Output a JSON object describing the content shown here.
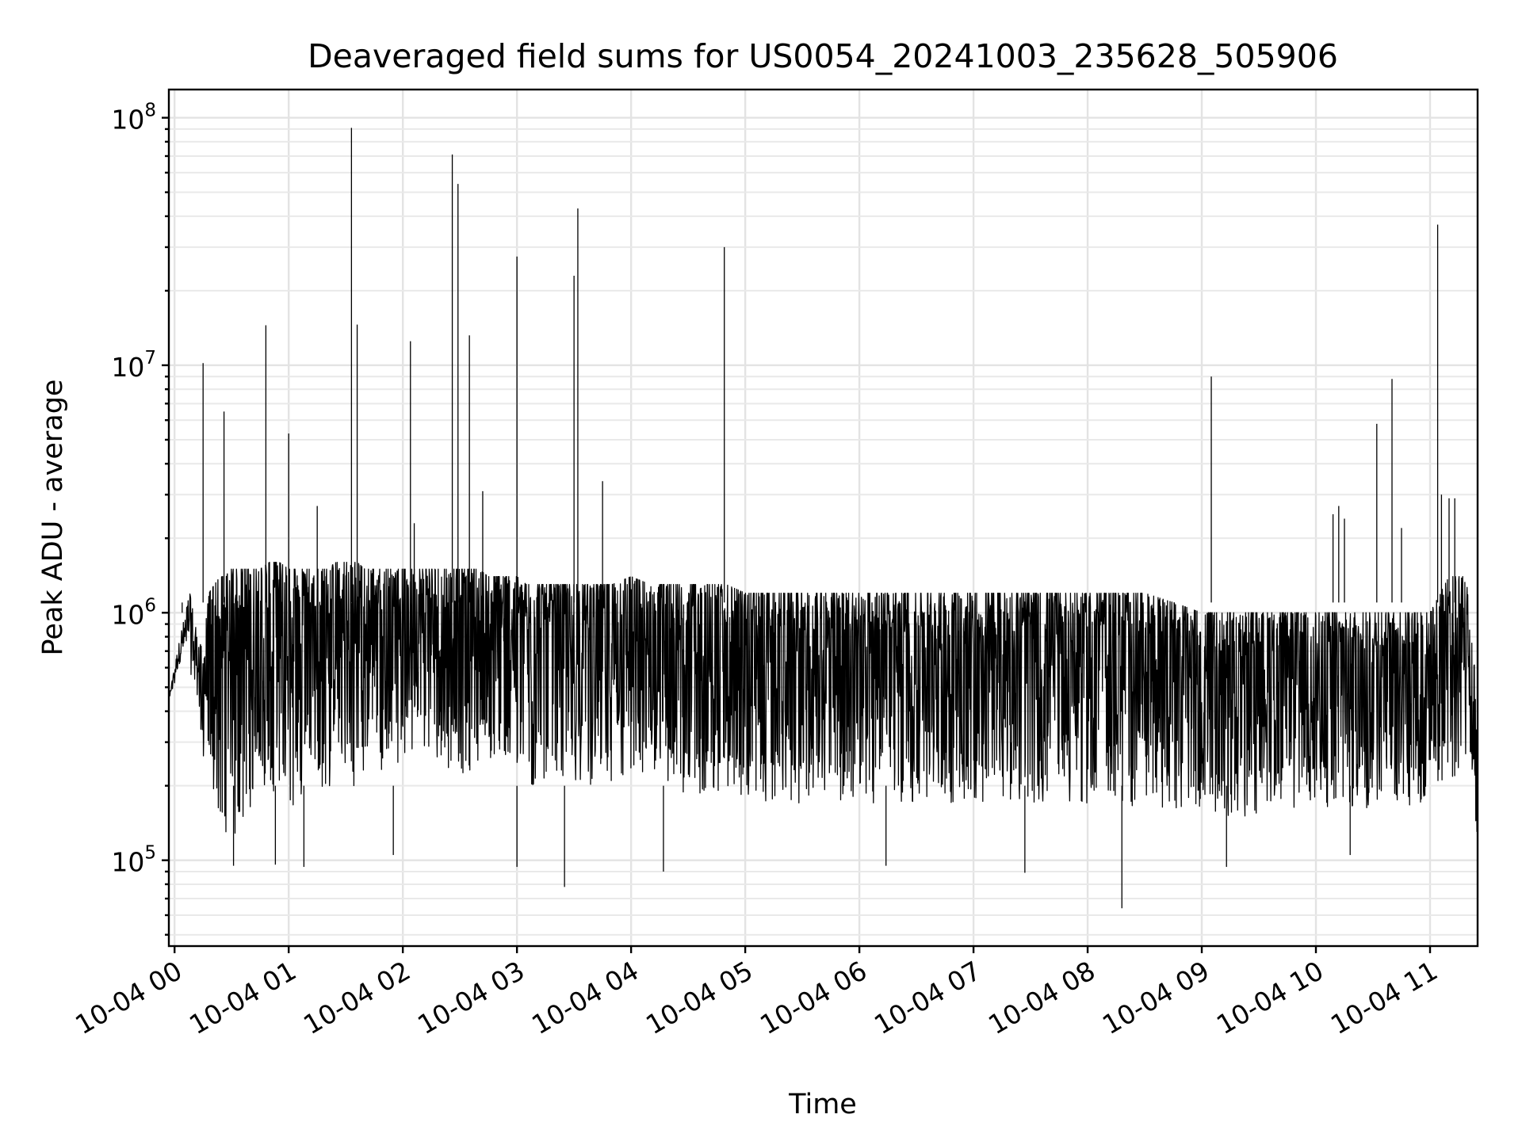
{
  "chart_data": {
    "type": "line",
    "title": "Deaveraged field sums for US0054_20241003_235628_505906",
    "xlabel": "Time",
    "ylabel": "Peak ADU - average",
    "yscale": "log",
    "grid": true,
    "xlim": [
      "2024-10-03 23:57",
      "2024-10-04 11:25"
    ],
    "ylim": [
      45000,
      130000000
    ],
    "x_ticks": [
      "10-04 00",
      "10-04 01",
      "10-04 02",
      "10-04 03",
      "10-04 04",
      "10-04 05",
      "10-04 06",
      "10-04 07",
      "10-04 08",
      "10-04 09",
      "10-04 10",
      "10-04 11"
    ],
    "y_ticks": [
      {
        "base": "10",
        "exp": "5"
      },
      {
        "base": "10",
        "exp": "6"
      },
      {
        "base": "10",
        "exp": "7"
      },
      {
        "base": "10",
        "exp": "8"
      }
    ],
    "series": [
      {
        "color": "#000000",
        "x": [
          "2024-10-03 23:57",
          "2024-10-04 00:03",
          "2024-10-04 00:08",
          "2024-10-04 00:12",
          "2024-10-04 00:15",
          "2024-10-04 00:18",
          "2024-10-04 00:21",
          "2024-10-04 00:24",
          "2024-10-04 00:27",
          "2024-10-04 00:29",
          "2024-10-04 00:31",
          "2024-10-04 00:33",
          "2024-10-04 00:35",
          "2024-10-04 00:40",
          "2024-10-04 00:45",
          "2024-10-04 00:50",
          "2024-10-04 00:55",
          "2024-10-04 01:00",
          "2024-10-04 01:05",
          "2024-10-04 01:10",
          "2024-10-04 01:15",
          "2024-10-04 01:20",
          "2024-10-04 01:25",
          "2024-10-04 01:30",
          "2024-10-04 01:33",
          "2024-10-04 01:36",
          "2024-10-04 01:40",
          "2024-10-04 01:45",
          "2024-10-04 01:50",
          "2024-10-04 01:55",
          "2024-10-04 02:00",
          "2024-10-04 02:04",
          "2024-10-04 02:08",
          "2024-10-04 02:12",
          "2024-10-04 02:16",
          "2024-10-04 02:20",
          "2024-10-04 02:24",
          "2024-10-04 02:27",
          "2024-10-04 02:30",
          "2024-10-04 02:35",
          "2024-10-04 02:40",
          "2024-10-04 02:45",
          "2024-10-04 02:50",
          "2024-10-04 02:55",
          "2024-10-04 03:00",
          "2024-10-04 03:05",
          "2024-10-04 03:10",
          "2024-10-04 03:15",
          "2024-10-04 03:20",
          "2024-10-04 03:25",
          "2024-10-04 03:30",
          "2024-10-04 03:35",
          "2024-10-04 03:40",
          "2024-10-04 03:45",
          "2024-10-04 03:50",
          "2024-10-04 04:00",
          "2024-10-04 04:10",
          "2024-10-04 04:20",
          "2024-10-04 04:30",
          "2024-10-04 04:40",
          "2024-10-04 04:50",
          "2024-10-04 05:00",
          "2024-10-04 05:15",
          "2024-10-04 05:30",
          "2024-10-04 05:45",
          "2024-10-04 06:00",
          "2024-10-04 06:15",
          "2024-10-04 06:30",
          "2024-10-04 06:45",
          "2024-10-04 07:00",
          "2024-10-04 07:15",
          "2024-10-04 07:30",
          "2024-10-04 07:45",
          "2024-10-04 08:00",
          "2024-10-04 08:15",
          "2024-10-04 08:30",
          "2024-10-04 08:45",
          "2024-10-04 09:00",
          "2024-10-04 09:15",
          "2024-10-04 09:30",
          "2024-10-04 09:45",
          "2024-10-04 10:00",
          "2024-10-04 10:15",
          "2024-10-04 10:30",
          "2024-10-04 10:45",
          "2024-10-04 11:00",
          "2024-10-04 11:10",
          "2024-10-04 11:20",
          "2024-10-04 11:25"
        ],
        "upper": [
          450000,
          800000,
          1200000,
          800000,
          700000,
          1200000,
          1300000,
          1400000,
          1400000,
          1500000,
          1500000,
          1500000,
          1500000,
          1500000,
          1500000,
          1600000,
          1600000,
          1500000,
          1500000,
          1500000,
          1500000,
          1500000,
          1600000,
          1600000,
          1600000,
          1600000,
          1500000,
          1500000,
          1500000,
          1500000,
          1500000,
          1500000,
          1500000,
          1500000,
          1500000,
          1500000,
          1500000,
          1500000,
          1500000,
          1500000,
          1500000,
          1400000,
          1400000,
          1400000,
          1400000,
          1300000,
          1300000,
          1300000,
          1300000,
          1300000,
          1300000,
          1300000,
          1300000,
          1300000,
          1300000,
          1400000,
          1300000,
          1300000,
          1300000,
          1300000,
          1300000,
          1200000,
          1200000,
          1200000,
          1200000,
          1200000,
          1200000,
          1200000,
          1200000,
          1200000,
          1200000,
          1200000,
          1200000,
          1200000,
          1200000,
          1200000,
          1100000,
          1000000,
          1000000,
          1000000,
          1000000,
          1000000,
          1000000,
          1000000,
          1000000,
          1000000,
          1400000,
          1400000,
          400000
        ],
        "lower": [
          450000,
          600000,
          600000,
          400000,
          250000,
          200000,
          180000,
          150000,
          130000,
          120000,
          110000,
          120000,
          140000,
          160000,
          170000,
          180000,
          180000,
          170000,
          160000,
          170000,
          180000,
          190000,
          200000,
          210000,
          200000,
          200000,
          210000,
          220000,
          230000,
          240000,
          250000,
          260000,
          270000,
          260000,
          250000,
          240000,
          230000,
          220000,
          220000,
          230000,
          240000,
          240000,
          230000,
          220000,
          220000,
          200000,
          190000,
          190000,
          200000,
          210000,
          210000,
          200000,
          190000,
          180000,
          190000,
          200000,
          200000,
          190000,
          180000,
          180000,
          180000,
          170000,
          170000,
          170000,
          170000,
          170000,
          170000,
          170000,
          170000,
          170000,
          170000,
          170000,
          170000,
          170000,
          170000,
          160000,
          160000,
          150000,
          150000,
          150000,
          160000,
          160000,
          160000,
          160000,
          160000,
          160000,
          200000,
          250000,
          100000
        ]
      }
    ],
    "spikes": [
      {
        "x": "2024-10-04 00:04",
        "y": 1000000
      },
      {
        "x": "2024-10-04 00:15",
        "y": 10200000
      },
      {
        "x": "2024-10-04 00:26",
        "y": 6500000
      },
      {
        "x": "2024-10-04 00:48",
        "y": 14500000
      },
      {
        "x": "2024-10-04 01:00",
        "y": 5300000
      },
      {
        "x": "2024-10-04 01:15",
        "y": 2700000
      },
      {
        "x": "2024-10-04 01:33",
        "y": 91000000
      },
      {
        "x": "2024-10-04 01:36",
        "y": 14600000
      },
      {
        "x": "2024-10-04 02:04",
        "y": 12500000
      },
      {
        "x": "2024-10-04 02:06",
        "y": 2300000
      },
      {
        "x": "2024-10-04 02:26",
        "y": 71000000
      },
      {
        "x": "2024-10-04 02:29",
        "y": 54000000
      },
      {
        "x": "2024-10-04 02:35",
        "y": 13200000
      },
      {
        "x": "2024-10-04 02:42",
        "y": 3100000
      },
      {
        "x": "2024-10-04 03:00",
        "y": 27500000
      },
      {
        "x": "2024-10-04 03:30",
        "y": 23000000
      },
      {
        "x": "2024-10-04 03:32",
        "y": 43000000
      },
      {
        "x": "2024-10-04 03:45",
        "y": 3400000
      },
      {
        "x": "2024-10-04 04:49",
        "y": 30000000
      },
      {
        "x": "2024-10-04 09:05",
        "y": 9000000
      },
      {
        "x": "2024-10-04 10:09",
        "y": 2500000
      },
      {
        "x": "2024-10-04 10:12",
        "y": 2700000
      },
      {
        "x": "2024-10-04 10:15",
        "y": 2400000
      },
      {
        "x": "2024-10-04 10:32",
        "y": 5800000
      },
      {
        "x": "2024-10-04 10:40",
        "y": 8800000
      },
      {
        "x": "2024-10-04 10:45",
        "y": 2200000
      },
      {
        "x": "2024-10-04 11:04",
        "y": 37000000
      },
      {
        "x": "2024-10-04 11:06",
        "y": 3000000
      },
      {
        "x": "2024-10-04 11:10",
        "y": 2900000
      },
      {
        "x": "2024-10-04 11:13",
        "y": 2900000
      }
    ],
    "dips": [
      {
        "x": "2024-10-04 00:31",
        "y": 95000
      },
      {
        "x": "2024-10-04 00:53",
        "y": 96000
      },
      {
        "x": "2024-10-04 01:08",
        "y": 94000
      },
      {
        "x": "2024-10-04 01:55",
        "y": 105000
      },
      {
        "x": "2024-10-04 03:00",
        "y": 94000
      },
      {
        "x": "2024-10-04 03:25",
        "y": 78000
      },
      {
        "x": "2024-10-04 04:17",
        "y": 90000
      },
      {
        "x": "2024-10-04 06:14",
        "y": 95000
      },
      {
        "x": "2024-10-04 07:27",
        "y": 89000
      },
      {
        "x": "2024-10-04 08:18",
        "y": 64000
      },
      {
        "x": "2024-10-04 09:13",
        "y": 94000
      },
      {
        "x": "2024-10-04 10:18",
        "y": 105000
      }
    ]
  }
}
